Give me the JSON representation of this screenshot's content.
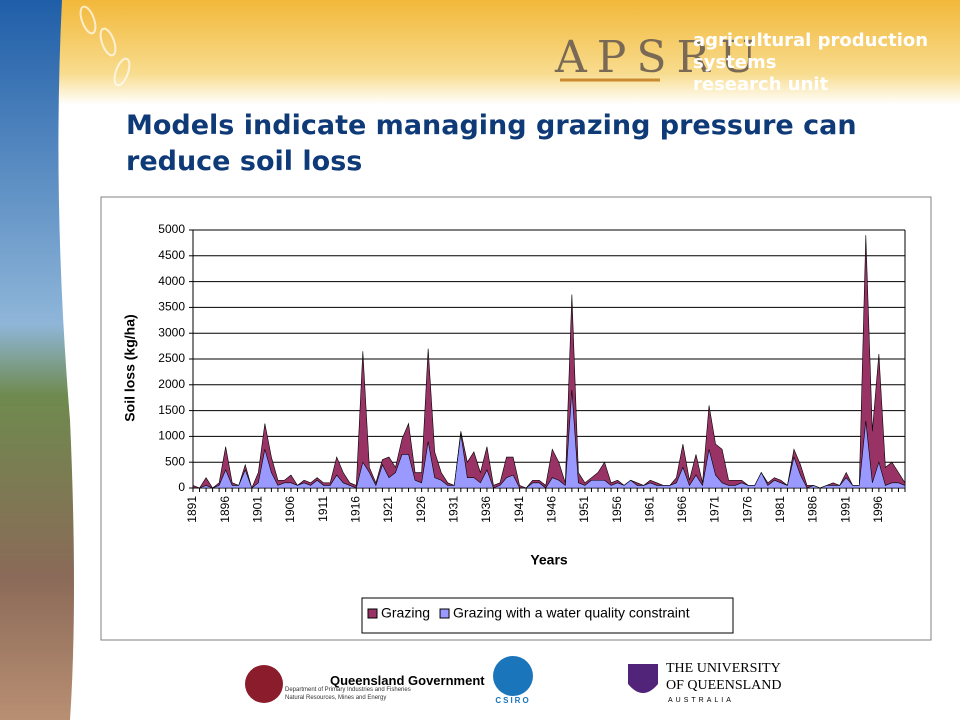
{
  "header": {
    "logo": "APSRU",
    "unit_line1": "agricultural production systems",
    "unit_line2": "research unit",
    "title": "Models indicate managing grazing pressure can reduce soil loss"
  },
  "chart_data": {
    "type": "area",
    "y_label": "Soil loss (kg/ha)",
    "x_label": "Years",
    "categories": [
      "1891",
      null,
      null,
      null,
      null,
      "1896",
      null,
      null,
      null,
      null,
      "1901",
      null,
      null,
      null,
      null,
      "1906",
      null,
      null,
      null,
      null,
      "1911",
      null,
      null,
      null,
      null,
      "1916",
      null,
      null,
      null,
      null,
      "1921",
      null,
      null,
      null,
      null,
      "1926",
      null,
      null,
      null,
      null,
      "1931",
      null,
      null,
      null,
      null,
      "1936",
      null,
      null,
      null,
      null,
      "1941",
      null,
      null,
      null,
      null,
      "1946",
      null,
      null,
      null,
      null,
      "1951",
      null,
      null,
      null,
      null,
      "1956",
      null,
      null,
      null,
      null,
      "1961",
      null,
      null,
      null,
      null,
      "1966",
      null,
      null,
      null,
      null,
      "1971",
      null,
      null,
      null,
      null,
      "1976",
      null,
      null,
      null,
      null,
      "1981",
      null,
      null,
      null,
      null,
      "1986",
      null,
      null,
      null,
      null,
      "1991",
      null,
      null,
      null,
      null,
      "1996",
      null,
      null,
      null,
      null
    ],
    "series": [
      {
        "name": "Grazing",
        "color": "#993366",
        "values": [
          50,
          0,
          200,
          0,
          100,
          800,
          100,
          50,
          450,
          0,
          300,
          1250,
          600,
          150,
          150,
          250,
          50,
          150,
          100,
          200,
          100,
          100,
          600,
          300,
          100,
          50,
          2650,
          400,
          100,
          550,
          600,
          400,
          950,
          1250,
          300,
          300,
          2700,
          700,
          300,
          100,
          50,
          1100,
          500,
          700,
          300,
          800,
          50,
          100,
          600,
          600,
          50,
          0,
          150,
          150,
          50,
          750,
          500,
          100,
          3750,
          300,
          100,
          200,
          300,
          500,
          100,
          150,
          50,
          150,
          100,
          50,
          150,
          100,
          50,
          50,
          200,
          850,
          150,
          650,
          100,
          1600,
          850,
          750,
          150,
          150,
          150,
          50,
          50,
          300,
          100,
          200,
          150,
          50,
          750,
          450,
          50,
          50,
          0,
          50,
          100,
          50,
          300,
          50,
          50,
          4900,
          1100,
          2600,
          400,
          500,
          300,
          100
        ]
      },
      {
        "name": "Grazing with a water quality constraint",
        "color": "#9999ff",
        "values": [
          0,
          0,
          50,
          0,
          50,
          350,
          50,
          50,
          350,
          0,
          100,
          750,
          300,
          50,
          100,
          100,
          50,
          100,
          50,
          150,
          50,
          50,
          250,
          100,
          50,
          0,
          500,
          300,
          50,
          450,
          200,
          300,
          650,
          650,
          150,
          100,
          900,
          200,
          150,
          50,
          50,
          1050,
          200,
          200,
          100,
          350,
          0,
          50,
          200,
          250,
          0,
          0,
          100,
          100,
          0,
          200,
          150,
          50,
          1900,
          100,
          50,
          150,
          150,
          150,
          50,
          100,
          50,
          150,
          50,
          50,
          100,
          50,
          50,
          50,
          100,
          400,
          50,
          250,
          50,
          750,
          250,
          100,
          50,
          50,
          100,
          50,
          50,
          300,
          50,
          150,
          100,
          50,
          600,
          250,
          0,
          50,
          0,
          50,
          50,
          50,
          200,
          50,
          50,
          1300,
          100,
          500,
          50,
          100,
          100,
          50
        ]
      }
    ],
    "ylim": [
      0,
      5000
    ],
    "yticks": [
      0,
      500,
      1000,
      1500,
      2000,
      2500,
      3000,
      3500,
      4000,
      4500,
      5000
    ],
    "grid": true,
    "legend": "bottom"
  },
  "footer": {
    "qld": "Queensland Government",
    "qld_dept1": "Department of Primary Industries and Fisheries",
    "qld_dept2": "Natural Resources, Mines and Energy",
    "csiro": "CSIRO",
    "uq1": "THE UNIVERSITY",
    "uq2": "OF QUEENSLAND",
    "uq3": "AUSTRALIA"
  }
}
